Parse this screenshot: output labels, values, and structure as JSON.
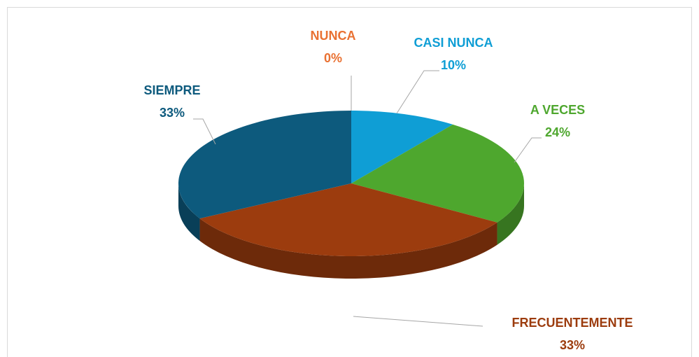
{
  "chart_data": {
    "type": "pie",
    "categories": [
      "NUNCA",
      "CASI NUNCA",
      "A VECES",
      "FRECUENTEMENTE",
      "SIEMPRE"
    ],
    "values": [
      0,
      10,
      24,
      33,
      33
    ],
    "value_labels": [
      "0%",
      "10%",
      "24%",
      "33%",
      "33%"
    ],
    "colors": [
      "#e97132",
      "#0f9ed5",
      "#4ea72e",
      "#9c3c0e",
      "#0d5a7d"
    ]
  }
}
